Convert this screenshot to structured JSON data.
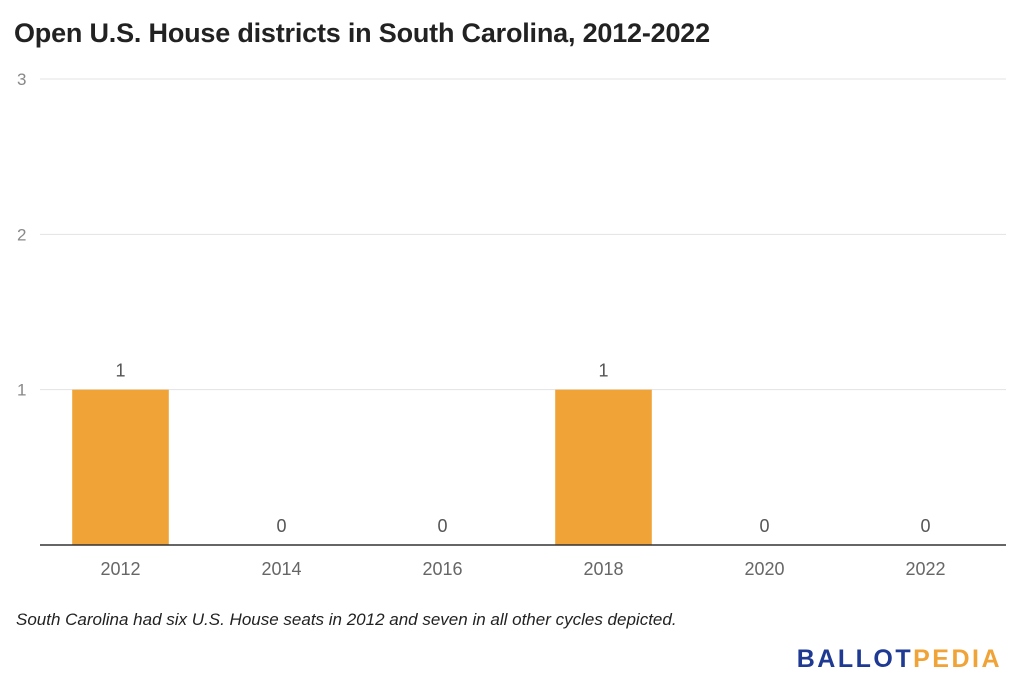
{
  "chart_data": {
    "type": "bar",
    "title": "Open U.S. House districts in South Carolina, 2012-2022",
    "categories": [
      "2012",
      "2014",
      "2016",
      "2018",
      "2020",
      "2022"
    ],
    "values": [
      1,
      0,
      0,
      1,
      0,
      0
    ],
    "data_labels": [
      "1",
      "0",
      "0",
      "1",
      "0",
      "0"
    ],
    "ylim": [
      0,
      3
    ],
    "yticks": [
      1,
      2,
      3
    ],
    "ytick_labels": [
      "1",
      "2",
      "3"
    ],
    "xlabel": "",
    "ylabel": "",
    "grid": true,
    "legend": "none",
    "bar_color": "#f0a336",
    "footnote": "South Carolina had six U.S. House seats in 2012 and seven in all other cycles depicted."
  },
  "brand": {
    "logo_part1": "BALLOT",
    "logo_part2": "PEDIA",
    "logo_color1": "#1f3a93",
    "logo_color2": "#f0a336"
  }
}
